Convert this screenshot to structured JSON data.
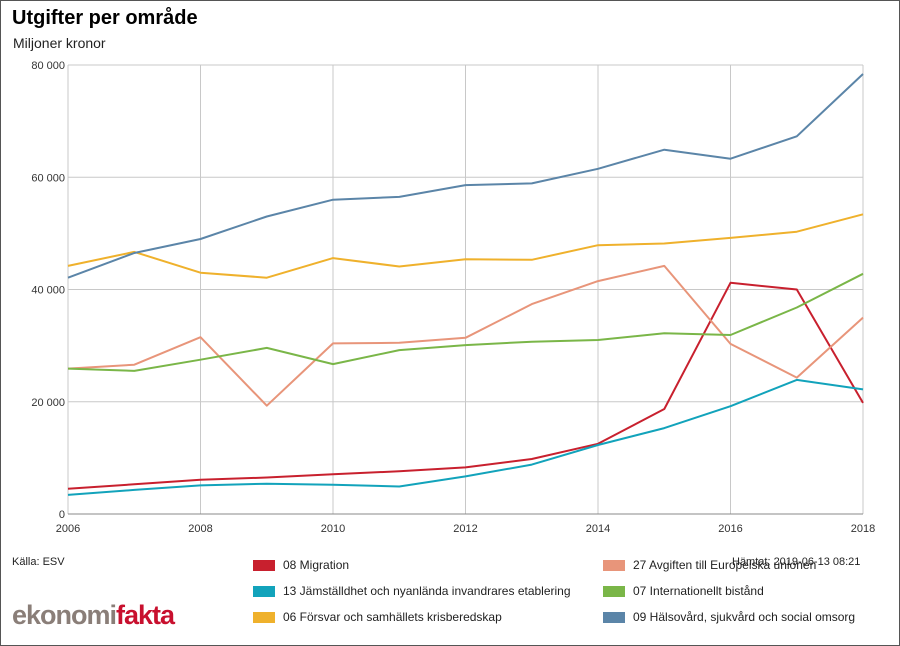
{
  "chart_data": {
    "type": "line",
    "title": "Utgifter per område",
    "subtitle": "Miljoner kronor",
    "x": [
      2006,
      2007,
      2008,
      2009,
      2010,
      2011,
      2012,
      2013,
      2014,
      2015,
      2016,
      2017,
      2018
    ],
    "xticks": [
      "2006",
      "2008",
      "2010",
      "2012",
      "2014",
      "2016",
      "2018"
    ],
    "yticks": [
      "0",
      "20 000",
      "40 000",
      "60 000",
      "80 000"
    ],
    "ylim": [
      0,
      80000
    ],
    "xlim": [
      2006,
      2018
    ],
    "grid": true,
    "legend_position": "bottom",
    "series": [
      {
        "name": "08 Migration",
        "color": "#c8202e",
        "values": [
          4500,
          5300,
          6100,
          6500,
          7100,
          7600,
          8300,
          9800,
          12500,
          18700,
          41200,
          40000,
          19800
        ]
      },
      {
        "name": "27 Avgiften till Europeiska unionen",
        "color": "#e8957a",
        "values": [
          25900,
          26600,
          31500,
          19300,
          30400,
          30500,
          31400,
          37400,
          41500,
          44200,
          30300,
          24300,
          35000
        ]
      },
      {
        "name": "13 Jämställdhet och nyanlända invandrares etablering",
        "color": "#12a3bb",
        "values": [
          3400,
          4300,
          5100,
          5400,
          5200,
          4900,
          6700,
          8800,
          12300,
          15300,
          19200,
          23900,
          22200
        ]
      },
      {
        "name": "07 Internationellt bistånd",
        "color": "#7ab648",
        "values": [
          25900,
          25500,
          27500,
          29600,
          26700,
          29200,
          30100,
          30700,
          31000,
          32200,
          31900,
          36800,
          42800
        ]
      },
      {
        "name": "06 Försvar och samhällets krisberedskap",
        "color": "#efb12c",
        "values": [
          44200,
          46700,
          43000,
          42100,
          45600,
          44100,
          45400,
          45300,
          47900,
          48200,
          49200,
          50300,
          53400
        ]
      },
      {
        "name": "09 Hälsovård, sjukvård och social omsorg",
        "color": "#5b85a8",
        "values": [
          42100,
          46500,
          49000,
          53000,
          56000,
          56500,
          58600,
          58900,
          61500,
          64900,
          63300,
          67300,
          78400
        ]
      }
    ]
  },
  "source_text": "Källa: ESV",
  "fetched_text": "Hämtat: 2019-06-13 08:21",
  "logo": {
    "part1": "ekonomi",
    "part2": "fakta"
  }
}
